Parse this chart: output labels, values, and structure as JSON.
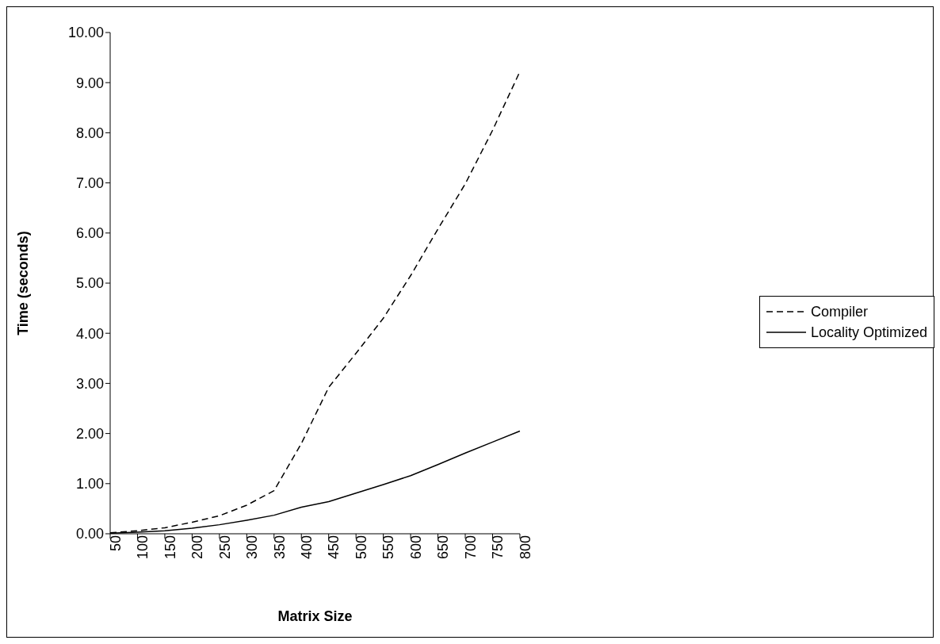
{
  "chart_data": {
    "type": "line",
    "xlabel": "Matrix Size",
    "ylabel": "Time (seconds)",
    "categories": [
      "50",
      "100",
      "150",
      "200",
      "250",
      "300",
      "350",
      "400",
      "450",
      "500",
      "550",
      "600",
      "650",
      "700",
      "750",
      "800"
    ],
    "series": [
      {
        "name": "Compiler",
        "color": "#000000",
        "line_style": "dashed",
        "values": [
          0.02,
          0.06,
          0.12,
          0.23,
          0.36,
          0.57,
          0.86,
          1.8,
          2.92,
          3.6,
          4.3,
          5.15,
          6.08,
          6.98,
          8.05,
          9.22
        ]
      },
      {
        "name": "Locality Optimized",
        "color": "#000000",
        "line_style": "solid",
        "values": [
          0.01,
          0.03,
          0.06,
          0.11,
          0.18,
          0.27,
          0.37,
          0.53,
          0.64,
          0.81,
          0.98,
          1.16,
          1.38,
          1.61,
          1.83,
          2.05
        ]
      }
    ],
    "ylim": [
      0,
      10
    ],
    "yticks": [
      {
        "value": 0,
        "label": "0.00"
      },
      {
        "value": 1,
        "label": "1.00"
      },
      {
        "value": 2,
        "label": "2.00"
      },
      {
        "value": 3,
        "label": "3.00"
      },
      {
        "value": 4,
        "label": "4.00"
      },
      {
        "value": 5,
        "label": "5.00"
      },
      {
        "value": 6,
        "label": "6.00"
      },
      {
        "value": 7,
        "label": "7.00"
      },
      {
        "value": 8,
        "label": "8.00"
      },
      {
        "value": 9,
        "label": "9.00"
      },
      {
        "value": 10,
        "label": "10.00"
      }
    ],
    "grid": false,
    "legend": "right",
    "marker": "none"
  }
}
